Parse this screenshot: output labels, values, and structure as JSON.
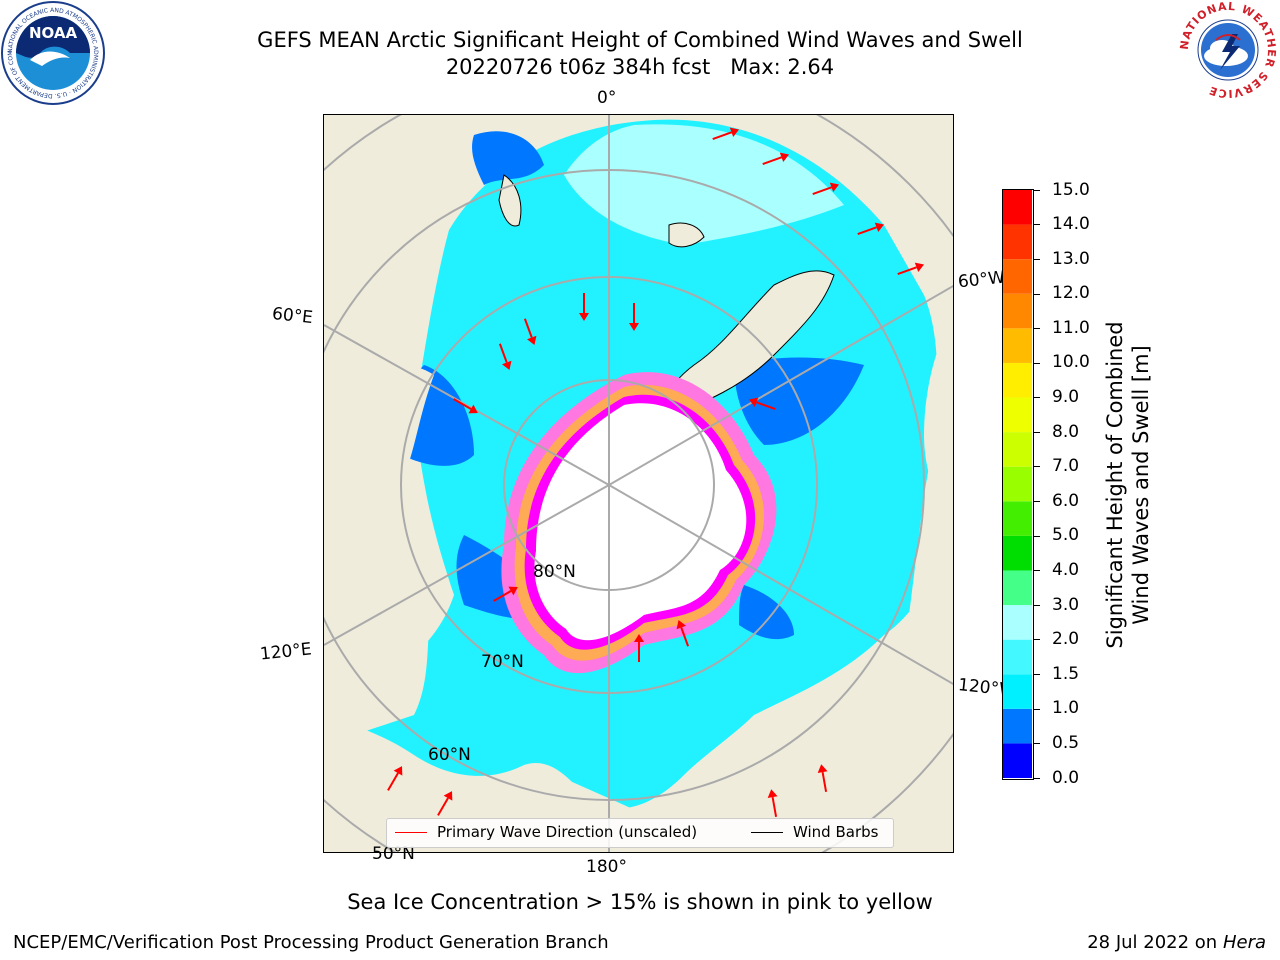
{
  "header": {
    "title_line1": "GEFS MEAN Arctic Significant Height of Combined Wind Waves and Swell",
    "title_line2": "20220726 t06z 384h fcst   Max: 2.64"
  },
  "logos": {
    "left": {
      "name": "NOAA",
      "text": "NOAA",
      "ring_text": "NATIONAL OCEANIC AND ATMOSPHERIC ADMINISTRATION · U.S. DEPARTMENT OF COMMERCE"
    },
    "right": {
      "name": "National Weather Service",
      "ring_text": "NATIONAL WEATHER SERVICE"
    }
  },
  "map": {
    "projection": "north-polar-stereographic",
    "meridian_labels": {
      "m0": "0°",
      "m180": "180°",
      "m60e": "60°E",
      "m60w": "60°W",
      "m120e": "120°E",
      "m120w": "120°W"
    },
    "latitude_labels": {
      "l80": "80°N",
      "l70": "70°N",
      "l60": "60°N",
      "l50": "50°N"
    },
    "colors": {
      "land": "#efecdc",
      "ocean_low": "#00ffff",
      "ice_pink": "#ff77e0",
      "ice_magenta": "#ff00ff",
      "ice_orange": "#ffaa44",
      "arrow": "#ff0000"
    }
  },
  "legend": {
    "primary_wave_label": "Primary Wave Direction (unscaled)",
    "wind_barbs_label": "Wind Barbs",
    "primary_wave_color": "#ff0000",
    "wind_barbs_color": "#000000"
  },
  "colorbar": {
    "label_line1": "Significant Height of Combined",
    "label_line2": "Wind Waves and Swell [m]",
    "ticks": [
      "0.0",
      "0.5",
      "1.0",
      "1.5",
      "2.0",
      "3.0",
      "4.0",
      "5.0",
      "6.0",
      "7.0",
      "8.0",
      "9.0",
      "10.0",
      "11.0",
      "12.0",
      "13.0",
      "14.0",
      "15.0"
    ],
    "bins": [
      {
        "from": 0.0,
        "to": 0.5,
        "color": "#0000ff"
      },
      {
        "from": 0.5,
        "to": 1.0,
        "color": "#0077ff"
      },
      {
        "from": 1.0,
        "to": 1.5,
        "color": "#00f0ff"
      },
      {
        "from": 1.5,
        "to": 2.0,
        "color": "#44f8ff"
      },
      {
        "from": 2.0,
        "to": 3.0,
        "color": "#aaffff"
      },
      {
        "from": 3.0,
        "to": 4.0,
        "color": "#44ff88"
      },
      {
        "from": 4.0,
        "to": 5.0,
        "color": "#00dd00"
      },
      {
        "from": 5.0,
        "to": 6.0,
        "color": "#44ee00"
      },
      {
        "from": 6.0,
        "to": 7.0,
        "color": "#99ff00"
      },
      {
        "from": 7.0,
        "to": 8.0,
        "color": "#ccff00"
      },
      {
        "from": 8.0,
        "to": 9.0,
        "color": "#eeff00"
      },
      {
        "from": 9.0,
        "to": 10.0,
        "color": "#ffee00"
      },
      {
        "from": 10.0,
        "to": 11.0,
        "color": "#ffbb00"
      },
      {
        "from": 11.0,
        "to": 12.0,
        "color": "#ff8800"
      },
      {
        "from": 12.0,
        "to": 13.0,
        "color": "#ff6600"
      },
      {
        "from": 13.0,
        "to": 14.0,
        "color": "#ff3300"
      },
      {
        "from": 14.0,
        "to": 15.0,
        "color": "#ff0000"
      }
    ]
  },
  "caption": "Sea Ice Concentration > 15% is shown in pink to yellow",
  "footer": {
    "left": "NCEP/EMC/Verification Post Processing Product Generation Branch",
    "right_date": "28 Jul 2022 on ",
    "right_host": "Hera"
  }
}
